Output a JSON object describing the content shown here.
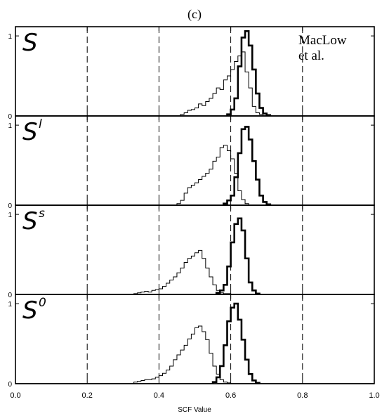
{
  "chart_data": {
    "type": "histogram-stack",
    "title": "(c)",
    "annotation": "MacLow et al.",
    "annotation_lines": [
      "MacLow",
      "et al."
    ],
    "xlabel": "SCF Value",
    "xlim": [
      0.0,
      1.0
    ],
    "ylim": [
      0,
      1.08
    ],
    "x_ticks": [
      "0.0",
      "0.2",
      "0.4",
      "0.6",
      "0.8",
      "1.0"
    ],
    "x_tick_values": [
      0.0,
      0.2,
      0.4,
      0.6,
      0.8,
      1.0
    ],
    "y_tick_labels": [
      "0",
      "1"
    ],
    "y_tick_values": [
      0,
      1
    ],
    "dashed_verticals": [
      0.2,
      0.4,
      0.6,
      0.8
    ],
    "bin_width": 0.01,
    "panels": [
      {
        "label": "S",
        "superscript": "",
        "thin": {
          "x_start": 0.46,
          "values": [
            0.02,
            0.04,
            0.07,
            0.08,
            0.1,
            0.15,
            0.13,
            0.18,
            0.22,
            0.28,
            0.35,
            0.33,
            0.45,
            0.5,
            0.58,
            0.68,
            0.75,
            0.8,
            0.55,
            0.35,
            0.12,
            0.04,
            0.02
          ]
        },
        "thick": {
          "x_start": 0.59,
          "values": [
            0.02,
            0.08,
            0.22,
            0.62,
            0.98,
            1.06,
            0.88,
            0.58,
            0.28,
            0.1,
            0.03,
            0.01
          ]
        }
      },
      {
        "label": "S",
        "superscript": "l",
        "thin": {
          "x_start": 0.45,
          "values": [
            0.02,
            0.06,
            0.15,
            0.22,
            0.25,
            0.28,
            0.32,
            0.36,
            0.4,
            0.45,
            0.55,
            0.6,
            0.72,
            0.75,
            0.68,
            0.58,
            0.4,
            0.18,
            0.07,
            0.02
          ]
        },
        "thick": {
          "x_start": 0.58,
          "values": [
            0.02,
            0.06,
            0.12,
            0.35,
            0.65,
            0.95,
            0.98,
            0.82,
            0.55,
            0.32,
            0.12,
            0.04,
            0.01
          ]
        }
      },
      {
        "label": "S",
        "superscript": "s",
        "thin": {
          "x_start": 0.33,
          "values": [
            0.01,
            0.02,
            0.03,
            0.04,
            0.03,
            0.05,
            0.06,
            0.07,
            0.1,
            0.14,
            0.18,
            0.22,
            0.27,
            0.33,
            0.4,
            0.45,
            0.48,
            0.52,
            0.55,
            0.45,
            0.33,
            0.22,
            0.12,
            0.05,
            0.02,
            0.01,
            0.01
          ]
        },
        "thick": {
          "x_start": 0.56,
          "values": [
            0.02,
            0.05,
            0.12,
            0.35,
            0.65,
            0.88,
            0.95,
            0.8,
            0.45,
            0.15,
            0.05,
            0.01
          ]
        }
      },
      {
        "label": "S",
        "superscript": "0",
        "thin": {
          "x_start": 0.33,
          "values": [
            0.02,
            0.03,
            0.04,
            0.05,
            0.05,
            0.06,
            0.08,
            0.1,
            0.13,
            0.17,
            0.22,
            0.3,
            0.36,
            0.42,
            0.48,
            0.56,
            0.62,
            0.7,
            0.72,
            0.65,
            0.55,
            0.38,
            0.22,
            0.12,
            0.05,
            0.02,
            0.01
          ]
        },
        "thick": {
          "x_start": 0.55,
          "values": [
            0.02,
            0.08,
            0.22,
            0.48,
            0.78,
            0.95,
            1.0,
            0.8,
            0.55,
            0.3,
            0.12,
            0.04,
            0.01
          ]
        }
      }
    ]
  }
}
